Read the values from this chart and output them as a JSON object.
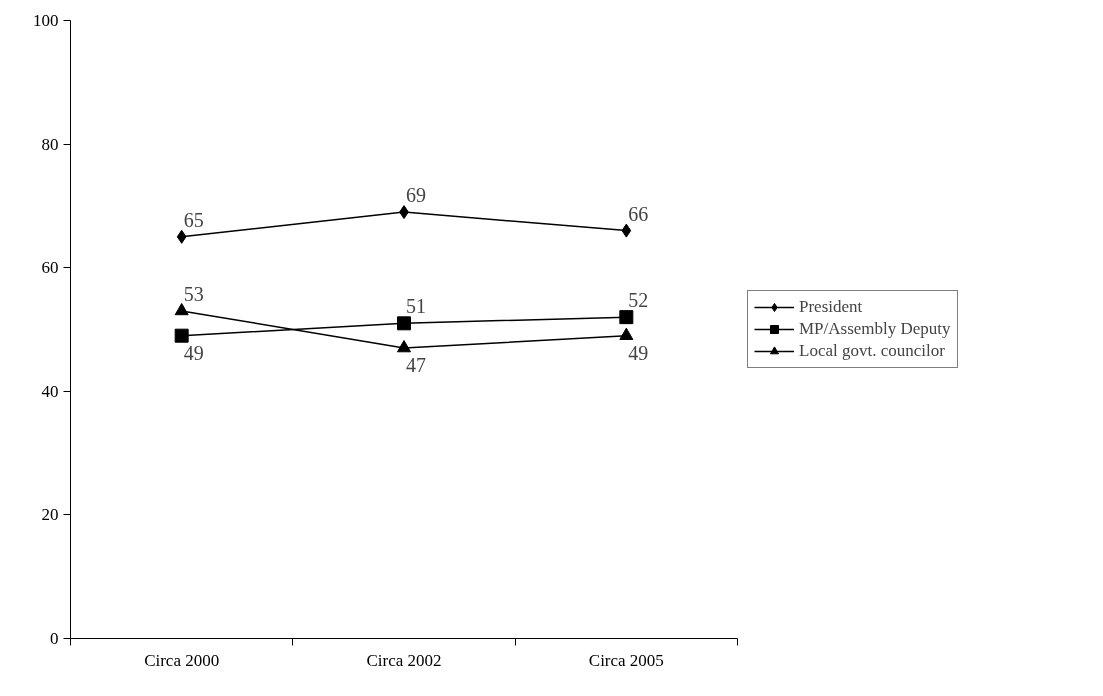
{
  "chart_data": {
    "type": "line",
    "categories": [
      "Circa 2000",
      "Circa 2002",
      "Circa 2005"
    ],
    "series": [
      {
        "name": "President",
        "color": "#000000",
        "marker": "diamond",
        "values": [
          65,
          69,
          66
        ]
      },
      {
        "name": "MP/Assembly Deputy",
        "color": "#000000",
        "marker": "square",
        "values": [
          49,
          51,
          52
        ]
      },
      {
        "name": "Local govt. councilor",
        "color": "#000000",
        "marker": "triangle",
        "values": [
          53,
          47,
          49
        ]
      }
    ],
    "ylim": [
      0,
      100
    ],
    "yticks": [
      0,
      20,
      40,
      60,
      80,
      100
    ],
    "grid": false,
    "legend": "right",
    "data_labels": true,
    "line_style": "solid"
  }
}
